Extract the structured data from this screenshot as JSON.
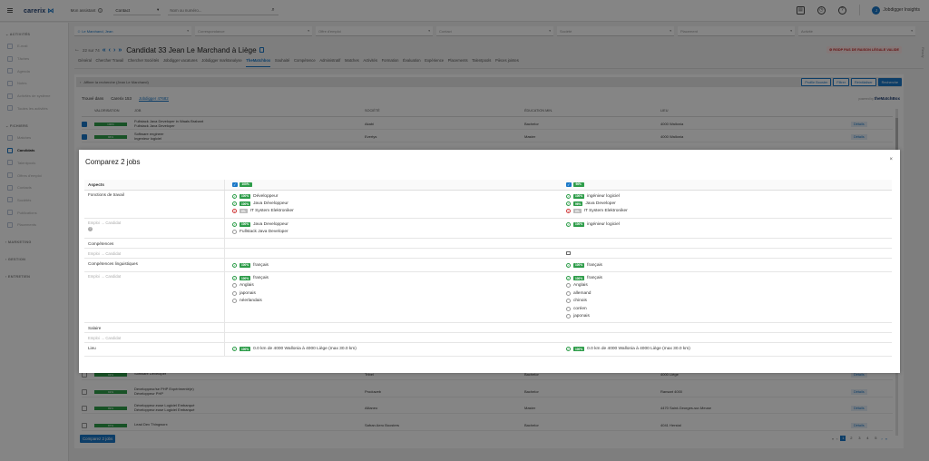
{
  "topbar": {
    "logo": "carerix",
    "me_label": "Mon assistant",
    "contact_select": "Contact",
    "search_placeholder": "Nom ou numéro...",
    "user": "Jobdigger Insights",
    "user_initial": "J"
  },
  "sidebar": {
    "sections": [
      {
        "head": "ACTIVITÉS",
        "items": [
          "E-mail",
          "Tâches",
          "Agenda",
          "Notes",
          "Activités de système",
          "Toutes les activités"
        ]
      },
      {
        "head": "FICHIERS",
        "items": [
          "Matches",
          "Candidats",
          "Talentpools",
          "Offres d'emploi",
          "Contacts",
          "Sociétés",
          "Publications",
          "Placements"
        ]
      }
    ],
    "active": "Candidats",
    "collapsed": [
      "MARKETING",
      "GESTION",
      "ENTRETIEN"
    ]
  },
  "filters": [
    "Le Marchand, Jean",
    "Correspondance",
    "Offre d'emploi",
    "Contact",
    "Société",
    "Placement",
    "Activité"
  ],
  "title": {
    "count": "22 sur 74",
    "candidate": "Candidat 33 Jean Le Marchand à Liège",
    "gdpr": "RGDP PAS DE RAISON LÉGALE VALIDE"
  },
  "tabs": [
    "Général",
    "Chercher Travail",
    "Chercher Sociétés",
    "Jobdigger vacatures",
    "Jobdigger marktanalyse",
    "TheMatchbox",
    "Souhaité",
    "Compétence",
    "Administratif",
    "Matches",
    "Activités",
    "Formation",
    "Évaluation",
    "Expérience",
    "Placements",
    "Talentpools",
    "Pièces jointes"
  ],
  "active_tab": "TheMatchbox",
  "side_label": "Ready",
  "panel": {
    "head": "Affiner la recherche (Jean Le Marchand)",
    "buttons": [
      "Profile Booster",
      "Filtrer",
      "Réinitialiser",
      "Recherche"
    ],
    "found_label": "Trouvé dans",
    "carerix_count": "Carerix 153",
    "jobdigger_count": "Jobdigger 47682",
    "powered": "powered by",
    "powered_brand": "theMatchBox",
    "columns": [
      "VALORISATION",
      "JOB",
      "SOCIÉTÉ",
      "ÉDUCATION MIN.",
      "LIEU"
    ],
    "rows_top": [
      {
        "pct": "100%",
        "job": "Fullstack Java Developer in Waals Brabant\nFullstack Java Developer",
        "soc": "Akabi",
        "edu": "Bachelor",
        "lieu": "4000 Wallonia",
        "checked": true
      },
      {
        "pct": "96%",
        "job": "Software engineer\nIngenieur logiciel",
        "soc": "Evertys",
        "edu": "Master",
        "lieu": "4000 Wallonia",
        "checked": true
      }
    ],
    "rows_bottom": [
      {
        "pct": "93%",
        "job": "Software Developer",
        "soc": "Tribel",
        "edu": "Bachelor",
        "lieu": "4000 Liège",
        "checked": false
      },
      {
        "pct": "91%",
        "job": "Developpeur/se PHP Expérimenté(e)\nDéveloppeur PHP",
        "soc": "Produweb",
        "edu": "Bachelor",
        "lieu": "Ransart 4000",
        "checked": false
      },
      {
        "pct": "89%",
        "job": "Développeur.euse Logiciel Embarqué\nDéveloppeur.euse Logiciel Embarqué",
        "soc": "Allianeo",
        "edu": "Master",
        "lieu": "4470 Saint-Georges-sur-Meuse",
        "checked": false
      },
      {
        "pct": "87%",
        "job": "Lead Dev Thingworx",
        "soc": "Safran Aero Boosters",
        "edu": "Bachelor",
        "lieu": "4041 Herstal",
        "checked": false
      }
    ],
    "details_label": "Détails",
    "compare_button": "Comparez 2 jobs",
    "pages": [
      "1",
      "2",
      "3",
      "4",
      "5"
    ]
  },
  "modal": {
    "title": "Comparez 2 jobs",
    "aspects_label": "Aspects",
    "job_a_pct": "100%",
    "job_b_pct": "96%",
    "sub_label": "Emploi → Candidat",
    "rows": {
      "fonctions": "Fonctions de travail",
      "competences": "Compétences",
      "langues": "Compétences linguistiques",
      "salaire": "Salaire",
      "lieu": "Lieu"
    },
    "fonctions_a": [
      {
        "status": "ok",
        "badge": "100%",
        "text": "Développeur"
      },
      {
        "status": "ok",
        "badge": "100%",
        "text": "Java Développeur"
      },
      {
        "status": "ko",
        "badge": "0%",
        "text": "IT System Elektroniker"
      }
    ],
    "fonctions_b": [
      {
        "status": "ok",
        "badge": "100%",
        "text": "ingénieur logiciel"
      },
      {
        "status": "ok",
        "badge": "96%",
        "text": "Java Developer"
      },
      {
        "status": "ko",
        "badge": "0%",
        "text": "IT System Elektroniker"
      }
    ],
    "fonctions_sub_a": [
      {
        "status": "ok",
        "badge": "100%",
        "text": "Java Developpeur"
      },
      {
        "status": "empty",
        "badge": "",
        "text": "Fullstack Java Developer"
      }
    ],
    "fonctions_sub_b": [
      {
        "status": "ok",
        "badge": "100%",
        "text": "ingénieur logiciel"
      }
    ],
    "langues_a": [
      {
        "status": "ok",
        "badge": "100%",
        "text": "français"
      }
    ],
    "langues_b": [
      {
        "status": "ok",
        "badge": "100%",
        "text": "français"
      }
    ],
    "langues_sub_a": [
      {
        "status": "ok",
        "badge": "100%",
        "text": "français"
      },
      {
        "status": "empty",
        "badge": "",
        "text": "Anglais"
      },
      {
        "status": "empty",
        "badge": "",
        "text": "japonais"
      },
      {
        "status": "empty",
        "badge": "",
        "text": "néerlandais"
      }
    ],
    "langues_sub_b": [
      {
        "status": "ok",
        "badge": "100%",
        "text": "français"
      },
      {
        "status": "empty",
        "badge": "",
        "text": "Anglais"
      },
      {
        "status": "empty",
        "badge": "",
        "text": "allemand"
      },
      {
        "status": "empty",
        "badge": "",
        "text": "chinois"
      },
      {
        "status": "empty",
        "badge": "",
        "text": "coréen"
      },
      {
        "status": "empty",
        "badge": "",
        "text": "japonais"
      }
    ],
    "lieu_a": [
      {
        "status": "ok",
        "badge": "100%",
        "text": "0.0 km de 4000 Wallonia à 4000 Liège (max 30.0 km)"
      }
    ],
    "lieu_b": [
      {
        "status": "ok",
        "badge": "100%",
        "text": "0.0 km de 4000 Wallonia à 4000 Liège (max 30.0 km)"
      }
    ]
  }
}
